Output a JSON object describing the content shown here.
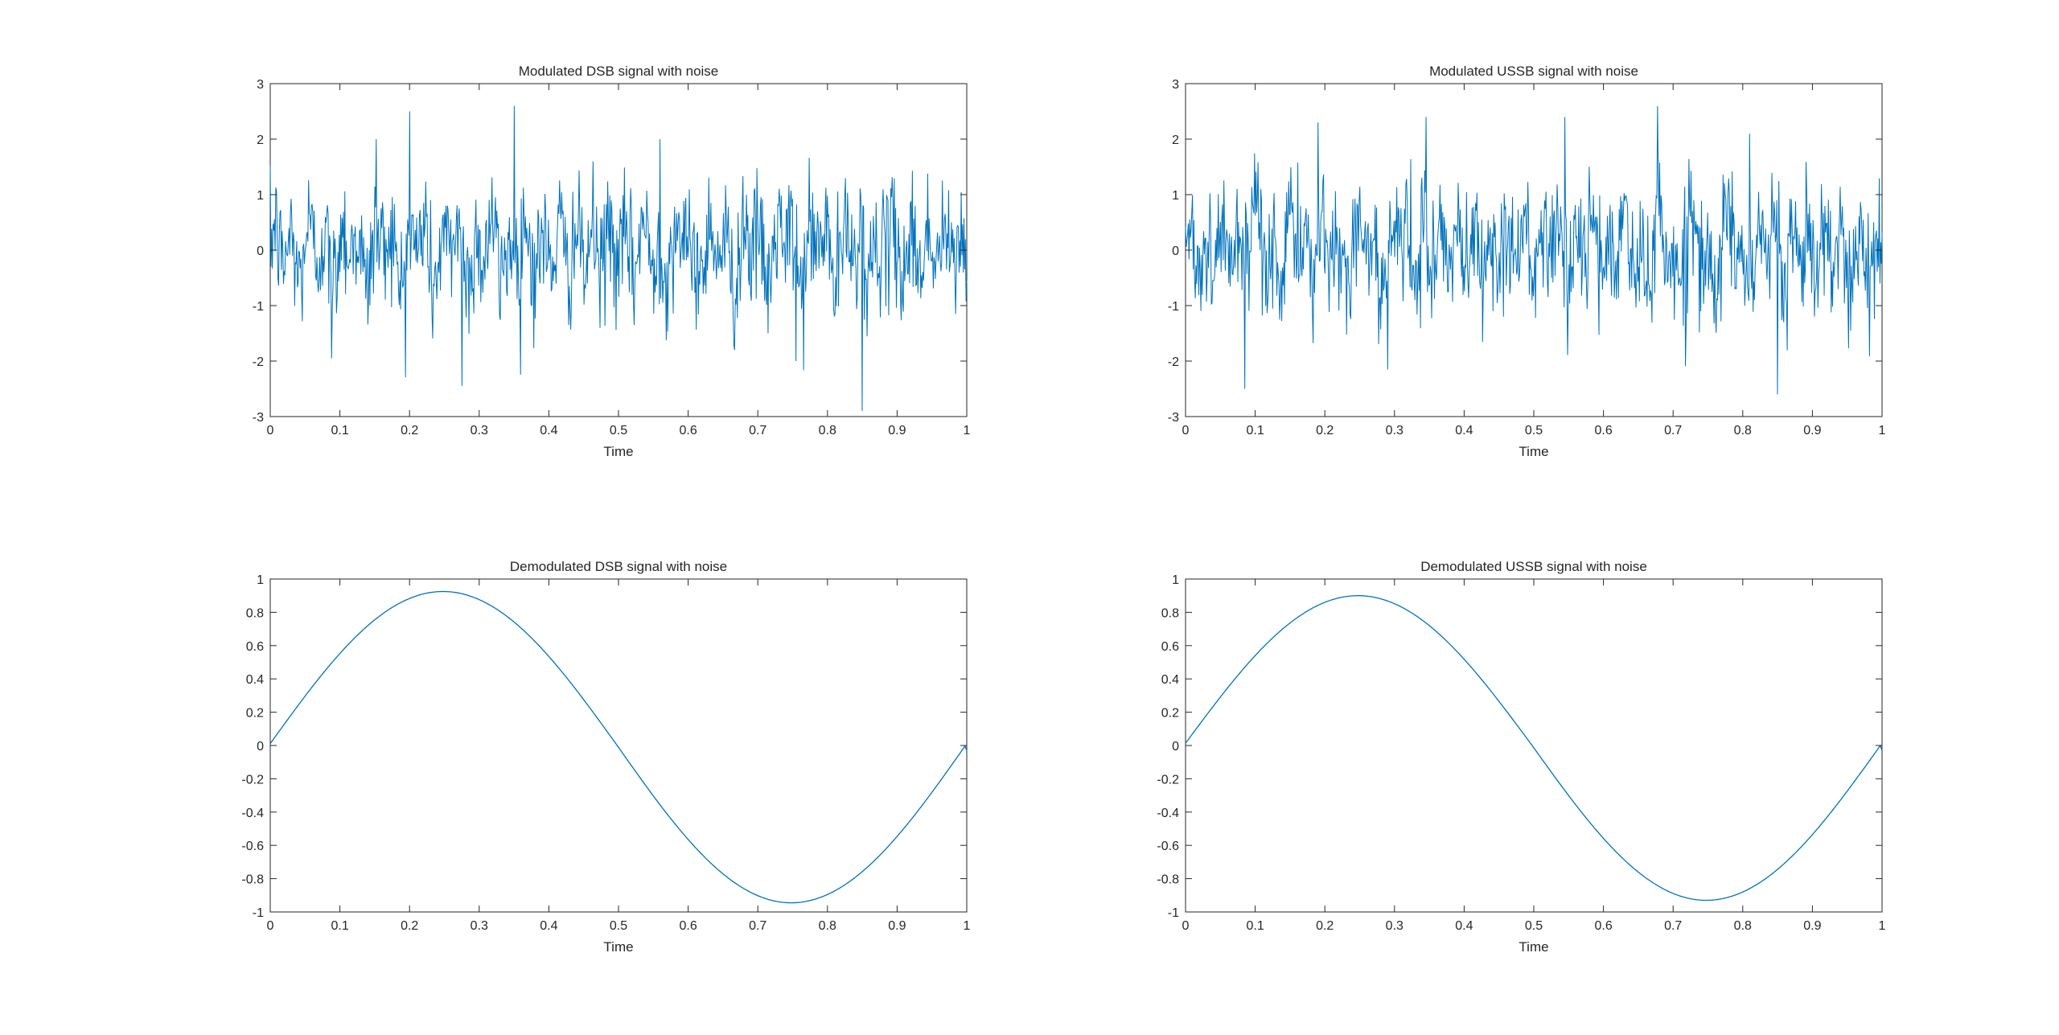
{
  "window": {
    "title": ""
  },
  "chart_data": [
    {
      "id": "p1",
      "type": "line",
      "title": "Modulated DSB signal with noise",
      "xlabel": "Time",
      "ylabel": "",
      "xlim": [
        0,
        1
      ],
      "ylim": [
        -3,
        3
      ],
      "xticks": [
        "0",
        "0.1",
        "0.2",
        "0.3",
        "0.4",
        "0.5",
        "0.6",
        "0.7",
        "0.8",
        "0.9",
        "1"
      ],
      "yticks": [
        "-3",
        "-2",
        "-1",
        "0",
        "1",
        "2",
        "3"
      ],
      "grid": false,
      "color": "#0072BD",
      "series": [
        {
          "signal": "noisy",
          "n_points": 1000,
          "peak_points": [
            {
              "x": 0.152,
              "y": 2.0
            },
            {
              "x": 0.2,
              "y": 2.5
            },
            {
              "x": 0.35,
              "y": 2.6
            },
            {
              "x": 0.56,
              "y": 2.0
            },
            {
              "x": 0.85,
              "y": -2.9
            },
            {
              "x": 0.275,
              "y": -2.45
            },
            {
              "x": 0.755,
              "y": -2.0
            },
            {
              "x": 0.088,
              "y": -1.95
            }
          ]
        }
      ]
    },
    {
      "id": "p2",
      "type": "line",
      "title": "Modulated USSB signal with noise",
      "xlabel": "Time",
      "ylabel": "",
      "xlim": [
        0,
        1
      ],
      "ylim": [
        -3,
        3
      ],
      "xticks": [
        "0",
        "0.1",
        "0.2",
        "0.3",
        "0.4",
        "0.5",
        "0.6",
        "0.7",
        "0.8",
        "0.9",
        "1"
      ],
      "yticks": [
        "-3",
        "-2",
        "-1",
        "0",
        "1",
        "2",
        "3"
      ],
      "grid": false,
      "color": "#0072BD",
      "series": [
        {
          "signal": "noisy",
          "n_points": 1000,
          "peak_points": [
            {
              "x": 0.19,
              "y": 2.3
            },
            {
              "x": 0.345,
              "y": 2.4
            },
            {
              "x": 0.545,
              "y": 2.4
            },
            {
              "x": 0.81,
              "y": 2.1
            },
            {
              "x": 0.085,
              "y": -2.5
            },
            {
              "x": 0.85,
              "y": -2.6
            },
            {
              "x": 0.29,
              "y": -2.15
            }
          ]
        }
      ]
    },
    {
      "id": "p3",
      "type": "line",
      "title": "Demodulated DSB signal with noise",
      "xlabel": "Time",
      "ylabel": "",
      "xlim": [
        0,
        1
      ],
      "ylim": [
        -1,
        1
      ],
      "xticks": [
        "0",
        "0.1",
        "0.2",
        "0.3",
        "0.4",
        "0.5",
        "0.6",
        "0.7",
        "0.8",
        "0.9",
        "1"
      ],
      "yticks": [
        "-1",
        "-0.8",
        "-0.6",
        "-0.4",
        "-0.2",
        "0",
        "0.2",
        "0.4",
        "0.6",
        "0.8",
        "1"
      ],
      "grid": false,
      "color": "#0072BD",
      "series": [
        {
          "signal": "sine",
          "n_points": 400,
          "amplitude": 0.935,
          "frequency": 1,
          "phase_offset": 0.012,
          "min_y": -0.945,
          "max_y": 0.925,
          "end_y": -0.03
        }
      ]
    },
    {
      "id": "p4",
      "type": "line",
      "title": "Demodulated USSB signal with noise",
      "xlabel": "Time",
      "ylabel": "",
      "xlim": [
        0,
        1
      ],
      "ylim": [
        -1,
        1
      ],
      "xticks": [
        "0",
        "0.1",
        "0.2",
        "0.3",
        "0.4",
        "0.5",
        "0.6",
        "0.7",
        "0.8",
        "0.9",
        "1"
      ],
      "yticks": [
        "-1",
        "-0.8",
        "-0.6",
        "-0.4",
        "-0.2",
        "0",
        "0.2",
        "0.4",
        "0.6",
        "0.8",
        "1"
      ],
      "grid": false,
      "color": "#0072BD",
      "series": [
        {
          "signal": "sine",
          "n_points": 400,
          "amplitude": 0.91,
          "frequency": 1,
          "phase_offset": 0.015,
          "min_y": -0.93,
          "max_y": 0.9,
          "end_y": -0.03
        }
      ]
    }
  ]
}
